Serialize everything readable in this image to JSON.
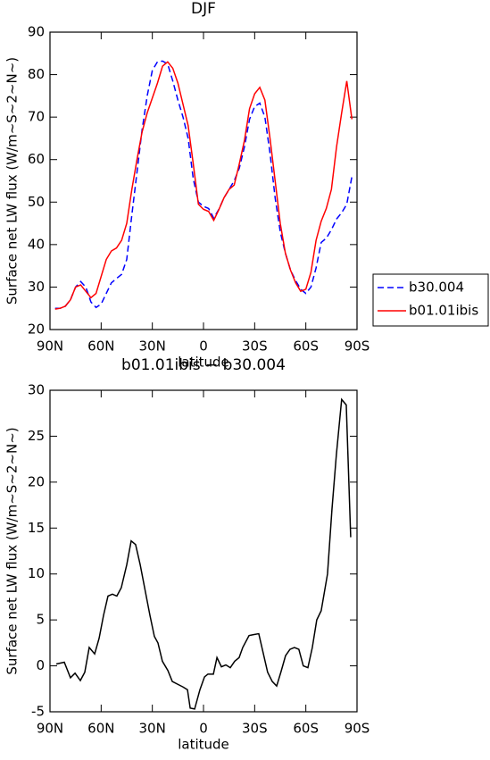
{
  "chart_data": [
    {
      "type": "line",
      "title": "DJF",
      "ylabel": "Surface net LW flux (W/m~S~2~N~)",
      "xlabel": "latitude",
      "x": [
        87,
        84,
        81,
        78,
        75,
        72,
        69,
        66,
        63,
        60,
        57,
        54,
        51,
        48,
        45,
        42,
        39,
        36,
        33,
        30,
        27,
        24,
        21,
        18,
        15,
        12,
        9,
        6,
        3,
        0,
        -3,
        -6,
        -9,
        -12,
        -15,
        -18,
        -21,
        -24,
        -27,
        -30,
        -33,
        -36,
        -39,
        -42,
        -45,
        -48,
        -51,
        -54,
        -57,
        -60,
        -63,
        -66,
        -69,
        -72,
        -75,
        -78,
        -81,
        -84,
        -87
      ],
      "series": [
        {
          "name": "b30.004",
          "color": "#0000ff",
          "linestyle": "dashed",
          "values": [
            25,
            25,
            25.5,
            27,
            30,
            31.3,
            30,
            26.5,
            25.2,
            26,
            28.5,
            31,
            32,
            33,
            36.5,
            47,
            57,
            67,
            75,
            81,
            83,
            83.2,
            82.5,
            78.5,
            74,
            70,
            65,
            55.5,
            50,
            49,
            48.5,
            46.2,
            48.3,
            51,
            53,
            55,
            58,
            63,
            69.5,
            72.5,
            73.3,
            70,
            61.5,
            51,
            43,
            38,
            34,
            31.5,
            29.5,
            28.5,
            30,
            34.5,
            40.5,
            41.5,
            43.5,
            46,
            47.5,
            49.5,
            56
          ]
        },
        {
          "name": "b01.01ibis",
          "color": "#ff0000",
          "linestyle": "solid",
          "values": [
            24.8,
            25,
            25.5,
            27,
            30,
            30.5,
            29,
            27.5,
            28.5,
            32.5,
            36.5,
            38.5,
            39.2,
            41,
            45,
            53,
            60,
            66.5,
            71,
            74.5,
            78,
            82,
            83,
            81.5,
            78,
            73,
            68,
            59,
            49.5,
            48.3,
            47.8,
            45.7,
            48.2,
            51,
            53,
            54,
            59,
            64.5,
            72,
            75.5,
            77,
            74,
            65,
            55,
            45,
            38,
            34,
            31,
            29,
            29.5,
            33.5,
            41,
            45.5,
            48.5,
            53,
            63,
            71,
            78.5,
            69.5
          ]
        }
      ],
      "xlim": [
        90,
        -90
      ],
      "xticks": [
        {
          "value": 90,
          "label": "90N"
        },
        {
          "value": 60,
          "label": "60N"
        },
        {
          "value": 30,
          "label": "30N"
        },
        0,
        {
          "value": -30,
          "label": "30S"
        },
        {
          "value": -60,
          "label": "60S"
        },
        {
          "value": -90,
          "label": "90S"
        }
      ],
      "ylim": [
        20,
        90
      ],
      "yticks": [
        20,
        30,
        40,
        50,
        60,
        70,
        80,
        90
      ],
      "legend": "right"
    },
    {
      "type": "line",
      "title": "b01.01ibis − b30.004",
      "ylabel": "Surface net LW flux (W/m~S~2~N~)",
      "xlabel": "latitude",
      "x": [
        86.3,
        81.6,
        78,
        75.3,
        72.2,
        69.6,
        67,
        63.8,
        61.2,
        58.6,
        56,
        53.4,
        50.8,
        48.2,
        45,
        42.4,
        39.8,
        37.1,
        34,
        31.4,
        28.8,
        26.7,
        24.1,
        20.9,
        18.3,
        15.2,
        12,
        9.4,
        7.8,
        5.2,
        2.1,
        -0.6,
        -2.6,
        -5.8,
        -7.9,
        -10.5,
        -13.1,
        -15.7,
        -18.3,
        -20.9,
        -23,
        -26.7,
        -29.3,
        -32.4,
        -35,
        -37.6,
        -40.3,
        -42.9,
        -45.5,
        -48.1,
        -50.7,
        -53.3,
        -55.9,
        -58.5,
        -61.2,
        -63.8,
        -66.4,
        -69,
        -72.7,
        -75.3,
        -77.9,
        -81,
        -83.7,
        -86.3
      ],
      "values": [
        0.2,
        0.4,
        -1.3,
        -0.8,
        -1.6,
        -0.7,
        2,
        1.3,
        3,
        5.5,
        7.6,
        7.8,
        7.6,
        8.5,
        11,
        13.6,
        13.2,
        11,
        8,
        5.5,
        3.2,
        2.5,
        0.5,
        -0.5,
        -1.7,
        -2,
        -2.3,
        -2.6,
        -4.6,
        -4.7,
        -2.6,
        -1.2,
        -0.9,
        -0.9,
        0.9,
        -0.1,
        0.1,
        -0.2,
        0.5,
        0.9,
        2,
        3.3,
        3.4,
        3.5,
        1.4,
        -0.7,
        -1.7,
        -2.2,
        -0.6,
        1.1,
        1.8,
        2,
        1.8,
        0,
        -0.2,
        2,
        5,
        6,
        10,
        17,
        23,
        29,
        28.4,
        14
      ],
      "color": "#000000",
      "linestyle": "solid",
      "xlim": [
        90,
        -90
      ],
      "xticks": [
        {
          "value": 90,
          "label": "90N"
        },
        {
          "value": 60,
          "label": "60N"
        },
        {
          "value": 30,
          "label": "30N"
        },
        0,
        {
          "value": -30,
          "label": "30S"
        },
        {
          "value": -60,
          "label": "60S"
        },
        {
          "value": -90,
          "label": "90S"
        }
      ],
      "ylim": [
        -5,
        30
      ],
      "yticks": [
        -5,
        0,
        5,
        10,
        15,
        20,
        25,
        30
      ]
    }
  ]
}
